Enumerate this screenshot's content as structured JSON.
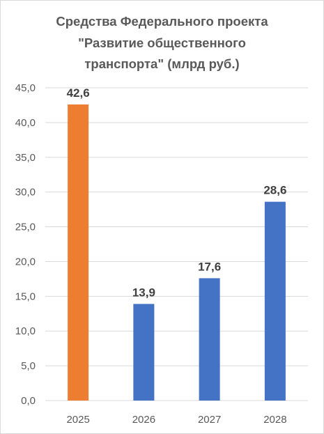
{
  "chart_data": {
    "type": "bar",
    "title_lines": [
      "Средства Федерального проекта",
      "\"Развитие общественного",
      "транспорта\" (млрд руб.)"
    ],
    "categories": [
      "2025",
      "2026",
      "2027",
      "2028"
    ],
    "values": [
      42.6,
      13.9,
      17.6,
      28.6
    ],
    "value_labels": [
      "42,6",
      "13,9",
      "17,6",
      "28,6"
    ],
    "bar_colors": [
      "#ED7D31",
      "#4472C4",
      "#4472C4",
      "#4472C4"
    ],
    "ylim": [
      0,
      45
    ],
    "ytick_values": [
      0,
      5,
      10,
      15,
      20,
      25,
      30,
      35,
      40,
      45
    ],
    "ytick_labels": [
      "0,0",
      "5,0",
      "10,0",
      "15,0",
      "20,0",
      "25,0",
      "30,0",
      "35,0",
      "40,0",
      "45,0"
    ],
    "xlabel": "",
    "ylabel": "",
    "grid": true,
    "legend": "none",
    "colors": {
      "gridline": "#d9d9d9",
      "axis_line": "#d9d9d9",
      "tick_text": "#595959",
      "title_text": "#595959",
      "data_label_text": "#404040"
    }
  }
}
